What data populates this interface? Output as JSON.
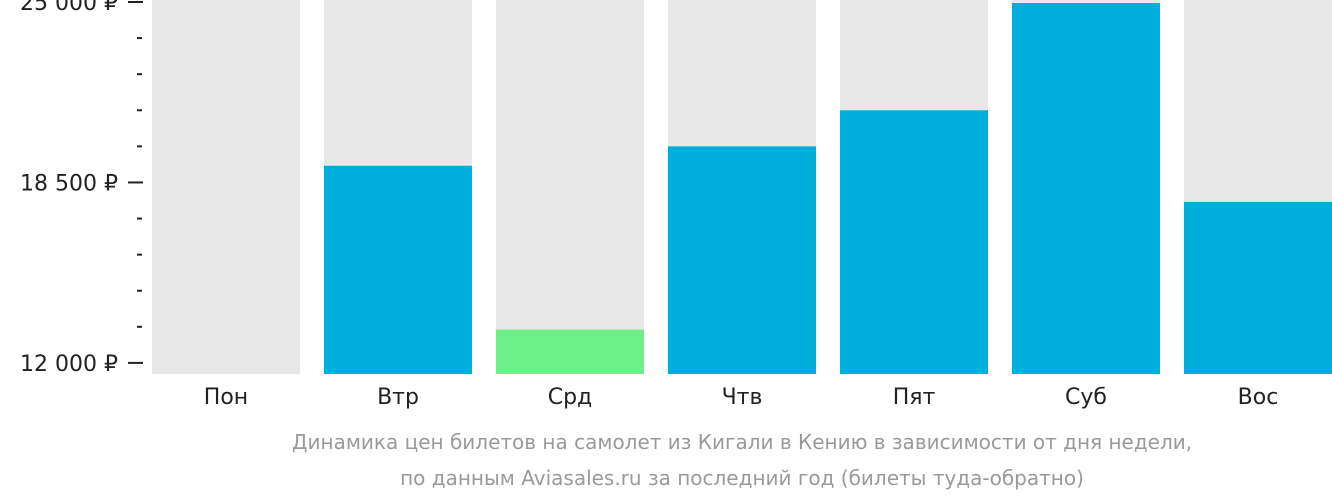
{
  "chart_data": {
    "type": "bar",
    "categories": [
      "Пон",
      "Втр",
      "Срд",
      "Чтв",
      "Пят",
      "Суб",
      "Вос"
    ],
    "values": [
      null,
      19100,
      13200,
      19800,
      21100,
      25000,
      17800
    ],
    "highlight_index": 2,
    "ylim": [
      11600,
      25000
    ],
    "yticks": [
      {
        "value": 25000,
        "label": "25 000 ₽"
      },
      {
        "value": 18500,
        "label": "18 500 ₽"
      },
      {
        "value": 12000,
        "label": "12 000 ₽"
      }
    ],
    "minor_yticks": [
      23700,
      22400,
      21100,
      19800,
      17200,
      15900,
      14600,
      13300
    ],
    "grid": false,
    "colors": {
      "bar": "#00AEDC",
      "highlight": "#6EF088",
      "background_bar": "#E8E8E8",
      "tick": "#222222"
    }
  },
  "caption": {
    "line1": "Динамика цен билетов на самолет из Кигали в Кению в зависимости от дня недели,",
    "line2": "по данным Aviasales.ru за последний год (билеты туда-обратно)"
  }
}
